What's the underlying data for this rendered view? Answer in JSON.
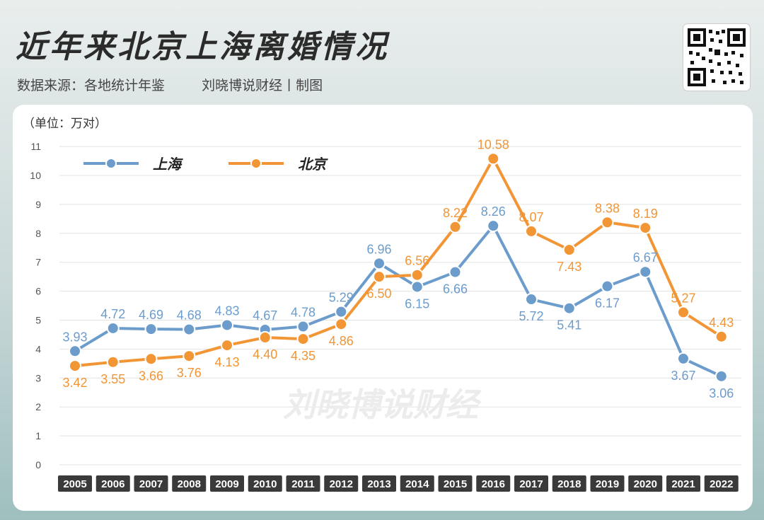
{
  "header": {
    "title": "近年来北京上海离婚情况",
    "source": "数据来源：各地统计年鉴",
    "credit": "刘晓博说财经丨制图"
  },
  "qr_icon": "qr-code-icon",
  "chart_data": {
    "type": "line",
    "unit_label": "（单位：万对）",
    "watermark": "刘晓博说财经",
    "categories": [
      "2005",
      "2006",
      "2007",
      "2008",
      "2009",
      "2010",
      "2011",
      "2012",
      "2013",
      "2014",
      "2015",
      "2016",
      "2017",
      "2018",
      "2019",
      "2020",
      "2021",
      "2022"
    ],
    "series": [
      {
        "name": "上海",
        "color": "#6c9ccc",
        "values": [
          3.93,
          4.72,
          4.69,
          4.68,
          4.83,
          4.67,
          4.78,
          5.29,
          6.96,
          6.15,
          6.66,
          8.26,
          5.72,
          5.41,
          6.17,
          6.67,
          3.67,
          3.06
        ]
      },
      {
        "name": "北京",
        "color": "#f29535",
        "values": [
          3.42,
          3.55,
          3.66,
          3.76,
          4.13,
          4.4,
          4.35,
          4.86,
          6.5,
          6.56,
          8.22,
          10.58,
          8.07,
          7.43,
          8.38,
          8.19,
          5.27,
          4.43
        ]
      }
    ],
    "ylim": [
      0,
      11
    ],
    "yticks": [
      0,
      1,
      2,
      3,
      4,
      5,
      6,
      7,
      8,
      9,
      10,
      11
    ],
    "grid": true,
    "legend": "top-left"
  }
}
